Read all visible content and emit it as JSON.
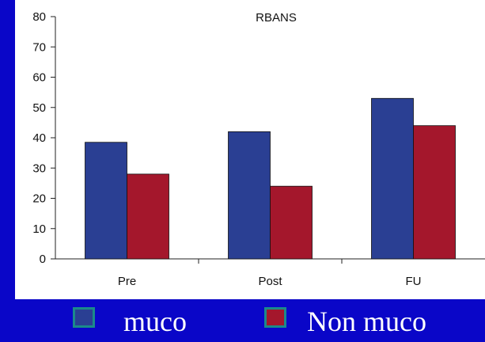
{
  "chart_data": {
    "type": "bar",
    "title": "RBANS",
    "categories": [
      "Pre",
      "Post",
      "FU"
    ],
    "series": [
      {
        "name": "muco",
        "color": "#2a3f93",
        "values": [
          38.5,
          42,
          53
        ]
      },
      {
        "name": "Non muco",
        "color": "#a4172c",
        "values": [
          28,
          24,
          44
        ]
      }
    ],
    "ylim": [
      0,
      80
    ],
    "yticks": [
      0,
      10,
      20,
      30,
      40,
      50,
      60,
      70,
      80
    ],
    "xlabel": "",
    "ylabel": "",
    "grid": false,
    "legend_position": "bottom"
  },
  "legend": {
    "items": [
      {
        "label": "muco",
        "color": "#2a3f93",
        "icon": "blue-square"
      },
      {
        "label": "Non muco",
        "color": "#a4172c",
        "icon": "red-square"
      }
    ]
  }
}
